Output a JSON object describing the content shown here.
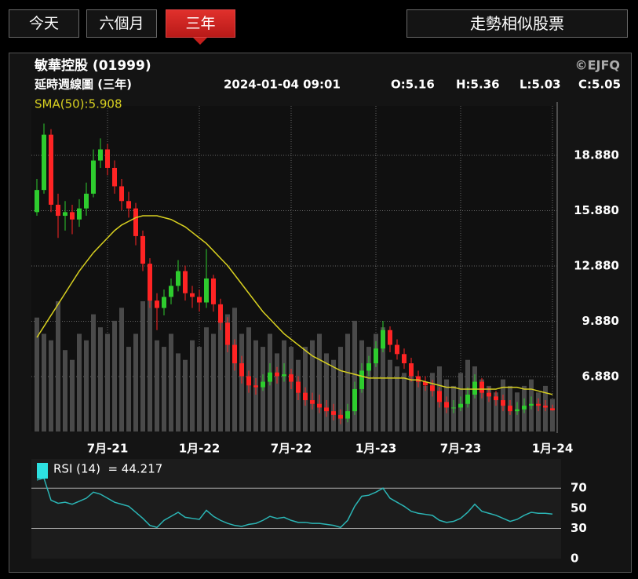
{
  "tabs": [
    "今天",
    "六個月",
    "三年"
  ],
  "active_tab": 2,
  "similar_button": "走勢相似股票",
  "header": {
    "title": "敏華控股 (01999)",
    "copyright": "©EJFQ",
    "subtitle": "延時週線圖 (三年)",
    "timestamp": "2024-01-04 09:01",
    "open": "O:5.16",
    "high": "H:5.36",
    "low": "L:5.03",
    "close": "C:5.05"
  },
  "chart_data": [
    {
      "type": "candlestick",
      "categories": [
        null,
        null,
        null,
        null,
        null,
        null,
        null,
        null,
        null,
        null,
        "7月-21",
        null,
        null,
        null,
        null,
        null,
        null,
        null,
        null,
        null,
        null,
        null,
        null,
        "1月-22",
        null,
        null,
        null,
        null,
        null,
        null,
        null,
        null,
        null,
        null,
        null,
        null,
        "7月-22",
        null,
        null,
        null,
        null,
        null,
        null,
        null,
        null,
        null,
        null,
        null,
        "1月-23",
        null,
        null,
        null,
        null,
        null,
        null,
        null,
        null,
        null,
        null,
        null,
        "7月-23",
        null,
        null,
        null,
        null,
        null,
        null,
        null,
        null,
        null,
        null,
        null,
        null,
        "1月-24"
      ],
      "open": [
        15.8,
        17.0,
        20.0,
        16.2,
        15.6,
        15.8,
        15.4,
        16.0,
        16.8,
        18.6,
        19.2,
        18.2,
        17.2,
        16.4,
        16.0,
        14.5,
        13.0,
        11.0,
        10.6,
        11.2,
        11.8,
        12.6,
        11.4,
        11.2,
        10.9,
        12.2,
        10.8,
        9.8,
        8.6,
        7.6,
        6.9,
        6.4,
        6.3,
        6.6,
        7.1,
        6.9,
        7.0,
        6.6,
        6.0,
        5.6,
        5.4,
        5.2,
        5.0,
        4.8,
        4.6,
        5.0,
        6.2,
        7.2,
        7.6,
        8.4,
        9.4,
        8.6,
        8.1,
        7.6,
        6.9,
        6.6,
        6.4,
        6.1,
        5.5,
        5.2,
        5.2,
        5.4,
        5.9,
        6.6,
        6.0,
        5.8,
        5.6,
        5.3,
        5.0,
        5.1,
        5.3,
        5.4,
        5.3,
        5.16
      ],
      "high": [
        17.6,
        20.6,
        20.3,
        16.8,
        16.4,
        16.2,
        16.5,
        17.4,
        19.2,
        19.8,
        19.5,
        18.6,
        17.6,
        16.9,
        16.3,
        14.8,
        13.3,
        11.4,
        11.6,
        12.2,
        13.2,
        12.9,
        11.8,
        11.6,
        13.8,
        12.4,
        11.1,
        10.1,
        8.9,
        8.0,
        7.2,
        6.8,
        7.0,
        7.6,
        7.4,
        7.6,
        7.3,
        6.9,
        6.3,
        6.0,
        5.9,
        5.6,
        5.4,
        5.1,
        5.4,
        6.6,
        7.6,
        8.0,
        8.8,
        9.9,
        9.6,
        8.9,
        8.4,
        7.9,
        7.2,
        6.9,
        6.7,
        6.3,
        5.8,
        5.6,
        5.8,
        6.3,
        7.0,
        6.8,
        6.3,
        6.1,
        5.9,
        5.6,
        5.5,
        5.7,
        5.8,
        5.7,
        5.6,
        5.36
      ],
      "low": [
        15.6,
        16.8,
        15.8,
        14.4,
        14.8,
        14.6,
        15.0,
        15.6,
        16.6,
        18.2,
        17.8,
        16.8,
        15.9,
        15.5,
        14.0,
        12.6,
        10.6,
        9.4,
        10.2,
        10.8,
        11.5,
        11.0,
        10.6,
        10.4,
        10.6,
        10.4,
        9.4,
        8.2,
        7.2,
        6.5,
        6.0,
        5.9,
        6.1,
        6.4,
        6.5,
        6.6,
        6.2,
        5.6,
        5.3,
        5.1,
        4.9,
        4.7,
        4.5,
        4.3,
        4.4,
        4.8,
        6.0,
        6.9,
        7.4,
        8.2,
        8.2,
        7.8,
        7.3,
        6.6,
        6.3,
        6.1,
        5.8,
        5.2,
        4.9,
        4.9,
        5.0,
        5.2,
        5.7,
        5.7,
        5.5,
        5.3,
        5.0,
        4.8,
        4.8,
        4.9,
        5.1,
        5.0,
        5.0,
        5.03
      ],
      "close": [
        17.0,
        20.0,
        16.2,
        15.6,
        15.8,
        15.4,
        16.0,
        16.8,
        18.6,
        19.2,
        18.2,
        17.2,
        16.4,
        16.0,
        14.5,
        13.0,
        11.0,
        10.6,
        11.2,
        11.8,
        12.6,
        11.4,
        11.2,
        10.9,
        12.2,
        10.8,
        9.8,
        8.6,
        7.6,
        6.9,
        6.4,
        6.3,
        6.6,
        7.1,
        6.9,
        7.0,
        6.6,
        6.0,
        5.6,
        5.4,
        5.2,
        5.0,
        4.8,
        4.6,
        5.0,
        6.2,
        7.2,
        7.6,
        8.4,
        9.4,
        8.6,
        8.1,
        7.6,
        6.9,
        6.6,
        6.4,
        6.1,
        5.5,
        5.2,
        5.2,
        5.4,
        5.9,
        6.6,
        6.0,
        5.8,
        5.6,
        5.3,
        5.0,
        5.1,
        5.3,
        5.4,
        5.3,
        5.2,
        5.05
      ],
      "up_color": "#2ecc2e",
      "down_color": "#ff2424",
      "volume": [
        35,
        30,
        28,
        40,
        25,
        22,
        30,
        28,
        36,
        32,
        30,
        34,
        38,
        26,
        30,
        40,
        42,
        28,
        26,
        30,
        24,
        22,
        28,
        26,
        32,
        30,
        34,
        36,
        38,
        30,
        32,
        28,
        26,
        30,
        24,
        28,
        26,
        22,
        26,
        28,
        30,
        24,
        22,
        26,
        30,
        34,
        28,
        26,
        30,
        32,
        22,
        20,
        18,
        20,
        16,
        14,
        18,
        20,
        16,
        14,
        18,
        22,
        20,
        16,
        14,
        12,
        16,
        14,
        12,
        14,
        16,
        12,
        14,
        10
      ],
      "volume_lim": [
        0,
        100
      ],
      "volume_color": "#4a4a4a",
      "series": [
        {
          "name": "SMA(50):5.908",
          "color": "#d8d020",
          "values": [
            9.0,
            9.6,
            10.2,
            10.8,
            11.4,
            12.0,
            12.6,
            13.1,
            13.6,
            14.0,
            14.4,
            14.8,
            15.1,
            15.3,
            15.5,
            15.6,
            15.6,
            15.6,
            15.5,
            15.4,
            15.2,
            15.0,
            14.7,
            14.4,
            14.1,
            13.7,
            13.3,
            12.9,
            12.4,
            11.9,
            11.4,
            10.9,
            10.4,
            10.0,
            9.6,
            9.2,
            8.9,
            8.6,
            8.3,
            8.0,
            7.8,
            7.6,
            7.4,
            7.2,
            7.1,
            7.0,
            6.9,
            6.8,
            6.8,
            6.8,
            6.8,
            6.8,
            6.8,
            6.7,
            6.7,
            6.6,
            6.5,
            6.4,
            6.3,
            6.3,
            6.2,
            6.2,
            6.2,
            6.2,
            6.2,
            6.2,
            6.3,
            6.3,
            6.3,
            6.2,
            6.2,
            6.1,
            6.0,
            5.908
          ]
        }
      ],
      "ylim": [
        3.9,
        21.56
      ],
      "yticks": [
        {
          "value": 6.88,
          "label": "6.880"
        },
        {
          "value": 9.88,
          "label": "9.880"
        },
        {
          "value": 12.88,
          "label": "12.880"
        },
        {
          "value": 15.88,
          "label": "15.880"
        },
        {
          "value": 18.88,
          "label": "18.880"
        }
      ],
      "grid": true
    },
    {
      "type": "line",
      "series": [
        {
          "name": "RSI (14)  = 44.217",
          "color": "#2bb5b5",
          "values": [
            78,
            80,
            58,
            55,
            56,
            54,
            57,
            60,
            66,
            64,
            60,
            56,
            54,
            52,
            46,
            40,
            33,
            31,
            38,
            42,
            46,
            41,
            40,
            39,
            48,
            42,
            38,
            35,
            33,
            32,
            34,
            35,
            38,
            42,
            40,
            41,
            38,
            36,
            36,
            35,
            35,
            34,
            33,
            31,
            38,
            52,
            62,
            63,
            66,
            70,
            60,
            56,
            52,
            47,
            45,
            44,
            43,
            38,
            36,
            37,
            40,
            46,
            54,
            47,
            45,
            43,
            40,
            37,
            39,
            43,
            46,
            45,
            45,
            44.217
          ]
        }
      ],
      "ylim": [
        0,
        99
      ],
      "yticks": [
        0,
        30,
        50,
        70
      ],
      "reference_lines": [
        30,
        70
      ],
      "legend_swatch_color": "#2de0e0"
    }
  ]
}
